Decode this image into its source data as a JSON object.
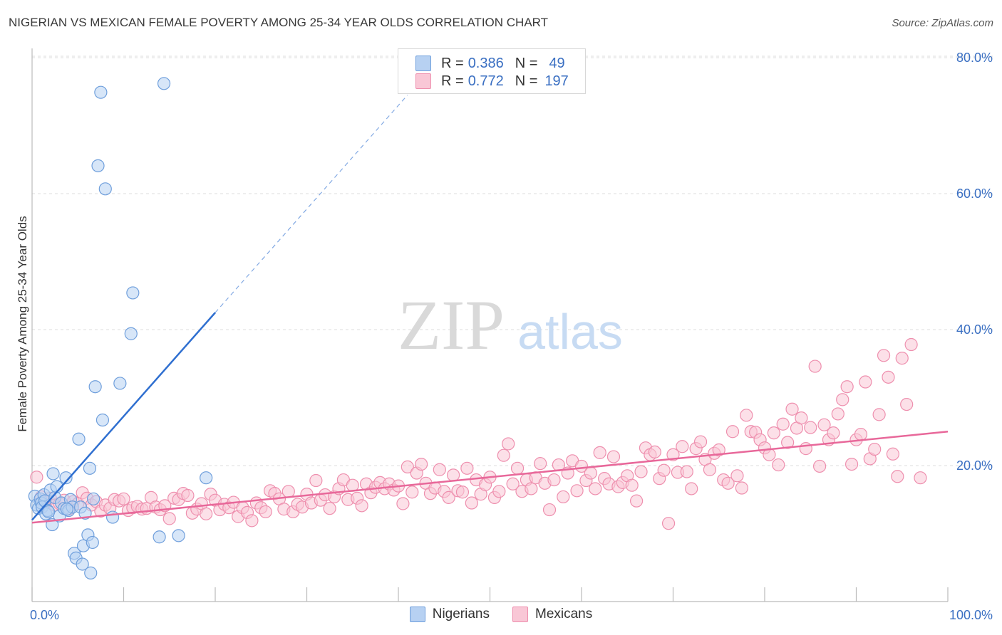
{
  "title": "NIGERIAN VS MEXICAN FEMALE POVERTY AMONG 25-34 YEAR OLDS CORRELATION CHART",
  "source": "Source: ZipAtlas.com",
  "watermark": {
    "zip": "ZIP",
    "atlas": "atlas"
  },
  "legend": {
    "r_label": "R =",
    "n_label": "N =",
    "rows": [
      {
        "r": "0.386",
        "n": "49"
      },
      {
        "r": "0.772",
        "n": "197"
      }
    ]
  },
  "colors": {
    "nigerians_fill": "#b7d1f2",
    "nigerians_stroke": "#6f9fdc",
    "nigerians_line": "#2f6fd0",
    "mexicans_fill": "#f9c7d6",
    "mexicans_stroke": "#ee8fae",
    "mexicans_line": "#e8689a",
    "axis_label": "#3a6fc2"
  },
  "chart_data": {
    "type": "scatter",
    "xlabel": "",
    "ylabel": "Female Poverty Among 25-34 Year Olds",
    "xlim": [
      0,
      100
    ],
    "ylim": [
      0,
      82
    ],
    "x_ticks": [
      "0.0%",
      "100.0%"
    ],
    "y_ticks": [
      {
        "value": 20,
        "label": "20.0%"
      },
      {
        "value": 40,
        "label": "40.0%"
      },
      {
        "value": 60,
        "label": "60.0%"
      },
      {
        "value": 80,
        "label": "80.0%"
      }
    ],
    "grid": "horizontal dashed",
    "legend_position": "top-center and bottom",
    "series": [
      {
        "name": "Nigerians",
        "trend": {
          "x0": 0,
          "y0": 12.0,
          "x1": 20,
          "y1": 42.5,
          "dash_to_x": 41,
          "dash_to_y": 74.5
        },
        "points": [
          [
            0.3,
            15.5
          ],
          [
            0.5,
            14.2
          ],
          [
            0.7,
            13.7
          ],
          [
            0.9,
            15.1
          ],
          [
            1.0,
            14.5
          ],
          [
            1.1,
            13.9
          ],
          [
            1.3,
            15.7
          ],
          [
            1.4,
            14.8
          ],
          [
            1.5,
            12.9
          ],
          [
            1.7,
            13.4
          ],
          [
            2.0,
            16.4
          ],
          [
            2.2,
            11.3
          ],
          [
            2.3,
            18.8
          ],
          [
            2.5,
            15.3
          ],
          [
            2.7,
            16.9
          ],
          [
            3.0,
            12.6
          ],
          [
            3.2,
            14.5
          ],
          [
            3.5,
            13.7
          ],
          [
            3.7,
            18.2
          ],
          [
            4.0,
            13.4
          ],
          [
            4.2,
            15.0
          ],
          [
            4.4,
            13.9
          ],
          [
            4.6,
            7.1
          ],
          [
            4.8,
            6.4
          ],
          [
            5.1,
            23.9
          ],
          [
            5.3,
            13.9
          ],
          [
            5.6,
            8.2
          ],
          [
            5.8,
            13.0
          ],
          [
            6.1,
            9.8
          ],
          [
            6.3,
            19.6
          ],
          [
            6.4,
            4.2
          ],
          [
            6.6,
            8.7
          ],
          [
            6.7,
            15.1
          ],
          [
            6.9,
            31.6
          ],
          [
            7.2,
            64.1
          ],
          [
            7.5,
            74.9
          ],
          [
            7.7,
            26.7
          ],
          [
            8.0,
            60.7
          ],
          [
            8.8,
            12.4
          ],
          [
            9.6,
            32.1
          ],
          [
            10.8,
            39.4
          ],
          [
            11.0,
            45.4
          ],
          [
            13.9,
            9.5
          ],
          [
            14.4,
            76.2
          ],
          [
            16.0,
            9.7
          ],
          [
            19.0,
            18.2
          ],
          [
            5.5,
            5.5
          ],
          [
            3.8,
            13.6
          ],
          [
            1.8,
            13.2
          ]
        ]
      },
      {
        "name": "Mexicans",
        "trend": {
          "x0": 0,
          "y0": 11.6,
          "x1": 100,
          "y1": 25.0
        },
        "points": [
          [
            0.5,
            18.3
          ],
          [
            1,
            15.4
          ],
          [
            1.5,
            14.6
          ],
          [
            2,
            15.2
          ],
          [
            2.5,
            14.2
          ],
          [
            3,
            14.4
          ],
          [
            3.5,
            14.9
          ],
          [
            4,
            13.6
          ],
          [
            4.5,
            14.7
          ],
          [
            5,
            14.4
          ],
          [
            5.5,
            16.0
          ],
          [
            6,
            15.2
          ],
          [
            6.5,
            14.2
          ],
          [
            7,
            14.7
          ],
          [
            7.5,
            13.3
          ],
          [
            8,
            14.2
          ],
          [
            8.5,
            13.7
          ],
          [
            9,
            15.0
          ],
          [
            9.5,
            14.8
          ],
          [
            10,
            15.1
          ],
          [
            10.5,
            13.4
          ],
          [
            11,
            13.8
          ],
          [
            11.5,
            14.0
          ],
          [
            12,
            13.6
          ],
          [
            12.5,
            13.7
          ],
          [
            13,
            15.3
          ],
          [
            13.5,
            13.9
          ],
          [
            14,
            13.5
          ],
          [
            14.5,
            14.1
          ],
          [
            15,
            12.2
          ],
          [
            15.5,
            15.2
          ],
          [
            16,
            15.0
          ],
          [
            16.5,
            15.9
          ],
          [
            17,
            15.6
          ],
          [
            17.5,
            13.0
          ],
          [
            18,
            13.6
          ],
          [
            18.5,
            14.4
          ],
          [
            19,
            12.9
          ],
          [
            19.5,
            15.8
          ],
          [
            20,
            14.9
          ],
          [
            20.5,
            13.5
          ],
          [
            21,
            14.3
          ],
          [
            21.5,
            13.8
          ],
          [
            22,
            14.6
          ],
          [
            22.5,
            12.5
          ],
          [
            23,
            13.8
          ],
          [
            23.5,
            13.1
          ],
          [
            24,
            11.9
          ],
          [
            24.5,
            14.5
          ],
          [
            25,
            13.8
          ],
          [
            25.5,
            13.2
          ],
          [
            26,
            16.3
          ],
          [
            26.5,
            15.9
          ],
          [
            27,
            15.1
          ],
          [
            27.5,
            13.6
          ],
          [
            28,
            16.2
          ],
          [
            28.5,
            13.2
          ],
          [
            29,
            14.3
          ],
          [
            29.5,
            13.9
          ],
          [
            30,
            15.8
          ],
          [
            30.5,
            14.5
          ],
          [
            31,
            17.8
          ],
          [
            31.5,
            14.9
          ],
          [
            32,
            15.7
          ],
          [
            32.5,
            13.7
          ],
          [
            33,
            15.4
          ],
          [
            33.5,
            16.6
          ],
          [
            34,
            17.9
          ],
          [
            34.5,
            15.0
          ],
          [
            35,
            17.1
          ],
          [
            35.5,
            15.2
          ],
          [
            36,
            14.1
          ],
          [
            36.5,
            17.3
          ],
          [
            37,
            16.0
          ],
          [
            37.5,
            16.8
          ],
          [
            38,
            17.5
          ],
          [
            38.5,
            16.6
          ],
          [
            39,
            17.3
          ],
          [
            39.5,
            16.4
          ],
          [
            40,
            17.0
          ],
          [
            40.5,
            14.4
          ],
          [
            41,
            19.8
          ],
          [
            41.5,
            16.1
          ],
          [
            42,
            18.9
          ],
          [
            42.5,
            20.2
          ],
          [
            43,
            17.4
          ],
          [
            43.5,
            15.9
          ],
          [
            44,
            16.7
          ],
          [
            44.5,
            19.4
          ],
          [
            45,
            16.2
          ],
          [
            45.5,
            15.3
          ],
          [
            46,
            18.6
          ],
          [
            46.5,
            16.3
          ],
          [
            47,
            16.1
          ],
          [
            47.5,
            19.6
          ],
          [
            48,
            14.5
          ],
          [
            48.5,
            17.9
          ],
          [
            49,
            15.8
          ],
          [
            49.5,
            17.2
          ],
          [
            50,
            18.3
          ],
          [
            50.5,
            15.3
          ],
          [
            51,
            16.2
          ],
          [
            51.5,
            21.5
          ],
          [
            52,
            23.2
          ],
          [
            52.5,
            17.3
          ],
          [
            53,
            19.6
          ],
          [
            53.5,
            16.2
          ],
          [
            54,
            17.9
          ],
          [
            54.5,
            16.6
          ],
          [
            55,
            18.2
          ],
          [
            55.5,
            20.3
          ],
          [
            56,
            17.4
          ],
          [
            56.5,
            13.5
          ],
          [
            57,
            17.9
          ],
          [
            57.5,
            20.1
          ],
          [
            58,
            15.4
          ],
          [
            58.5,
            18.9
          ],
          [
            59,
            20.7
          ],
          [
            59.5,
            16.3
          ],
          [
            60,
            19.9
          ],
          [
            60.5,
            17.8
          ],
          [
            61,
            18.9
          ],
          [
            61.5,
            16.6
          ],
          [
            62,
            21.9
          ],
          [
            62.5,
            18.1
          ],
          [
            63,
            17.3
          ],
          [
            63.5,
            21.3
          ],
          [
            64,
            16.9
          ],
          [
            64.5,
            17.5
          ],
          [
            65,
            18.5
          ],
          [
            65.5,
            17.1
          ],
          [
            66,
            14.8
          ],
          [
            66.5,
            19.1
          ],
          [
            67,
            22.6
          ],
          [
            67.5,
            21.6
          ],
          [
            68,
            22.0
          ],
          [
            68.5,
            18.1
          ],
          [
            69,
            19.3
          ],
          [
            69.5,
            11.5
          ],
          [
            70,
            21.6
          ],
          [
            70.5,
            19.0
          ],
          [
            71,
            22.8
          ],
          [
            71.5,
            19.1
          ],
          [
            72,
            16.6
          ],
          [
            72.5,
            22.5
          ],
          [
            73,
            23.5
          ],
          [
            73.5,
            20.9
          ],
          [
            74,
            19.4
          ],
          [
            74.5,
            21.8
          ],
          [
            75,
            22.3
          ],
          [
            75.5,
            17.9
          ],
          [
            76,
            17.4
          ],
          [
            76.5,
            25.0
          ],
          [
            77,
            18.5
          ],
          [
            77.5,
            16.7
          ],
          [
            78,
            27.4
          ],
          [
            78.5,
            25.0
          ],
          [
            79,
            24.9
          ],
          [
            79.5,
            23.8
          ],
          [
            80,
            22.6
          ],
          [
            80.5,
            21.6
          ],
          [
            81,
            24.8
          ],
          [
            81.5,
            20.1
          ],
          [
            82,
            26.1
          ],
          [
            82.5,
            23.4
          ],
          [
            83,
            28.3
          ],
          [
            83.5,
            25.5
          ],
          [
            84,
            27.0
          ],
          [
            84.5,
            22.5
          ],
          [
            85,
            25.6
          ],
          [
            85.5,
            34.6
          ],
          [
            86,
            19.9
          ],
          [
            86.5,
            26.0
          ],
          [
            87,
            23.8
          ],
          [
            87.5,
            24.8
          ],
          [
            88,
            27.6
          ],
          [
            88.5,
            29.7
          ],
          [
            89,
            31.6
          ],
          [
            89.5,
            20.2
          ],
          [
            90,
            23.8
          ],
          [
            90.5,
            24.6
          ],
          [
            91,
            32.3
          ],
          [
            91.5,
            21.0
          ],
          [
            92,
            22.4
          ],
          [
            92.5,
            27.5
          ],
          [
            93,
            36.2
          ],
          [
            93.5,
            33.0
          ],
          [
            94,
            21.7
          ],
          [
            94.5,
            18.4
          ],
          [
            95,
            35.8
          ],
          [
            95.5,
            29.0
          ],
          [
            96,
            37.8
          ],
          [
            97,
            18.2
          ]
        ]
      }
    ]
  }
}
